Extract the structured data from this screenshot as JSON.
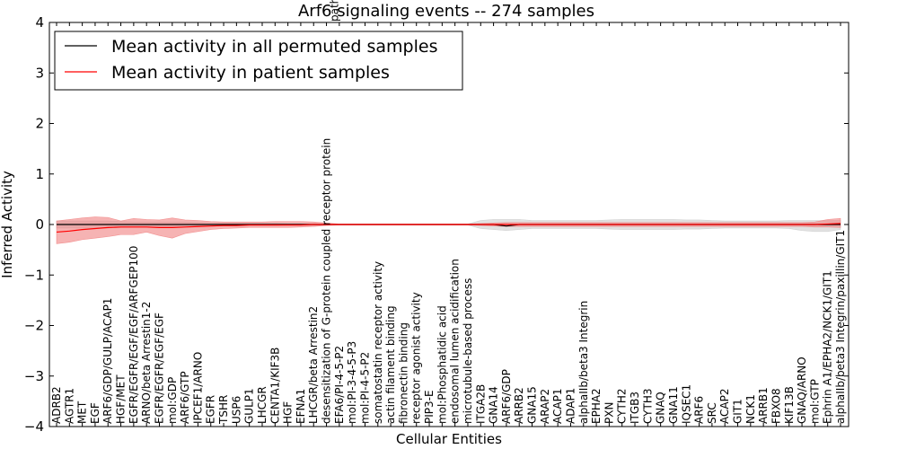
{
  "chart_data": {
    "type": "line",
    "title": "Arf6 signaling events -- 274 samples",
    "xlabel": "Cellular Entities",
    "ylabel": "Inferred Activity",
    "ylim": [
      -4,
      4
    ],
    "yticks": [
      "4",
      "3",
      "2",
      "1",
      "0",
      "−1",
      "−2",
      "−3",
      "−4"
    ],
    "grid": false,
    "legend_position": "top-left",
    "categories": [
      "ADRB2",
      "AGTR1",
      "MET",
      "EGF",
      "ARF6/GDP/GULP/ACAP1",
      "HGF/MET",
      "EGFR/EGFR/EGF/EGF/ARFGEP100",
      "ARNO/beta Arrestin1-2",
      "EGFR/EGFR/EGF/EGF",
      "mol:GDP",
      "ARF6/GTP",
      "IPCEF1/ARNO",
      "EGFR",
      "TSHR",
      "USP6",
      "GULP1",
      "LHCGR",
      "CENTA1/KIF3B",
      "HGF",
      "EFNA1",
      "LHCGR/beta Arrestin2",
      "desensitization of G-protein coupled receptor protein",
      "EFA6/PI-4-5-P2",
      "mol:PI-3-4-5-P3",
      "mol:PI-4-5-P2",
      "somatostatin receptor activity",
      "actin filament binding",
      "fibronectin binding",
      "receptor agonist activity",
      "PIP3-E",
      "mol:Phosphatidic acid",
      "endosomal lumen acidification",
      "microtubule-based process",
      "ITGA2B",
      "GNA14",
      "ARF6/GDP",
      "ARRB2",
      "GNA15",
      "ARAP2",
      "ACAP1",
      "ADAP1",
      "alphaIIb/beta3 Integrin",
      "EPHA2",
      "PXN",
      "CYTH2",
      "ITGB3",
      "CYTH3",
      "GNAQ",
      "GNA11",
      "IQSEC1",
      "ARF6",
      "SRC",
      "ACAP2",
      "GIT1",
      "NCK1",
      "ARRB1",
      "FBXO8",
      "KIF13B",
      "GNAQ/ARNO",
      "mol:GTP",
      "Ephrin A1/EPHA2/NCK1/GIT1",
      "alphaIIb/beta3 Integrin/paxillin/GIT1"
    ],
    "category_label_overflow": [
      "path"
    ],
    "series": [
      {
        "name": "Mean activity in all permuted samples",
        "color": "#000000",
        "values": [
          0,
          0,
          0,
          0,
          0,
          0,
          0,
          0,
          0,
          0,
          0,
          0,
          0,
          0,
          0,
          0,
          0,
          0,
          0,
          0,
          0,
          0,
          0,
          0,
          0,
          0,
          0,
          0,
          0,
          0,
          0,
          0,
          0,
          0,
          0,
          -0.03,
          0,
          0,
          0,
          0,
          0,
          0,
          0,
          0,
          0,
          0,
          0,
          0,
          0,
          0,
          0,
          0,
          0,
          0,
          0,
          0,
          0,
          0,
          0,
          0,
          0,
          0
        ],
        "band_color": "#c8c8c8",
        "band_lower": [
          -0.07,
          -0.07,
          -0.07,
          -0.07,
          -0.07,
          -0.06,
          -0.05,
          -0.05,
          -0.05,
          -0.05,
          -0.05,
          -0.04,
          -0.03,
          -0.03,
          -0.03,
          -0.03,
          -0.03,
          -0.03,
          -0.02,
          -0.02,
          -0.02,
          -0.01,
          -0.01,
          -0.01,
          -0.01,
          -0.01,
          -0.01,
          -0.01,
          -0.01,
          -0.01,
          -0.01,
          -0.01,
          -0.01,
          -0.08,
          -0.1,
          -0.12,
          -0.1,
          -0.08,
          -0.08,
          -0.08,
          -0.08,
          -0.08,
          -0.08,
          -0.09,
          -0.1,
          -0.1,
          -0.1,
          -0.1,
          -0.1,
          -0.09,
          -0.09,
          -0.08,
          -0.07,
          -0.07,
          -0.07,
          -0.07,
          -0.07,
          -0.08,
          -0.12,
          -0.14,
          -0.14,
          -0.1
        ],
        "band_upper": [
          0.07,
          0.07,
          0.07,
          0.07,
          0.07,
          0.06,
          0.05,
          0.05,
          0.05,
          0.05,
          0.05,
          0.04,
          0.03,
          0.03,
          0.03,
          0.03,
          0.03,
          0.03,
          0.02,
          0.02,
          0.02,
          0.01,
          0.01,
          0.01,
          0.01,
          0.01,
          0.01,
          0.01,
          0.01,
          0.01,
          0.01,
          0.01,
          0.01,
          0.08,
          0.1,
          0.1,
          0.1,
          0.08,
          0.08,
          0.08,
          0.08,
          0.08,
          0.08,
          0.09,
          0.1,
          0.1,
          0.1,
          0.1,
          0.1,
          0.09,
          0.09,
          0.08,
          0.07,
          0.07,
          0.07,
          0.07,
          0.07,
          0.08,
          0.08,
          0.08,
          0.08,
          0.08
        ]
      },
      {
        "name": "Mean activity in patient samples",
        "color": "#ff0000",
        "values": [
          -0.15,
          -0.13,
          -0.1,
          -0.08,
          -0.06,
          -0.05,
          -0.05,
          -0.05,
          -0.06,
          -0.06,
          -0.05,
          -0.04,
          -0.03,
          -0.02,
          -0.02,
          -0.01,
          -0.01,
          -0.01,
          -0.01,
          -0.01,
          0,
          0,
          0,
          0,
          0,
          0,
          0,
          0,
          0,
          0,
          0,
          0,
          0,
          0,
          0,
          0,
          0,
          0,
          0,
          0,
          0,
          0,
          0,
          0,
          0,
          0,
          0,
          0,
          0,
          0,
          0,
          0,
          0,
          0,
          0,
          0,
          0,
          0,
          0,
          0,
          0.01,
          0.02
        ],
        "band_color": "#f08080",
        "band_lower": [
          -0.38,
          -0.35,
          -0.3,
          -0.27,
          -0.24,
          -0.2,
          -0.2,
          -0.15,
          -0.22,
          -0.27,
          -0.18,
          -0.14,
          -0.1,
          -0.08,
          -0.07,
          -0.06,
          -0.06,
          -0.06,
          -0.06,
          -0.05,
          -0.04,
          -0.02,
          -0.01,
          -0.01,
          -0.01,
          -0.01,
          -0.01,
          -0.01,
          -0.01,
          -0.01,
          -0.01,
          -0.01,
          -0.01,
          -0.02,
          -0.03,
          -0.04,
          -0.04,
          -0.04,
          -0.04,
          -0.04,
          -0.04,
          -0.04,
          -0.04,
          -0.04,
          -0.04,
          -0.04,
          -0.04,
          -0.04,
          -0.04,
          -0.04,
          -0.04,
          -0.04,
          -0.04,
          -0.04,
          -0.04,
          -0.04,
          -0.04,
          -0.04,
          -0.04,
          -0.05,
          -0.05,
          -0.06
        ],
        "band_upper": [
          0.07,
          0.1,
          0.13,
          0.15,
          0.14,
          0.07,
          0.12,
          0.1,
          0.09,
          0.13,
          0.09,
          0.08,
          0.06,
          0.05,
          0.05,
          0.05,
          0.05,
          0.06,
          0.06,
          0.06,
          0.05,
          0.03,
          0.01,
          0.01,
          0.01,
          0.01,
          0.01,
          0.01,
          0.01,
          0.01,
          0.01,
          0.01,
          0.01,
          0.02,
          0.03,
          0.04,
          0.04,
          0.04,
          0.04,
          0.04,
          0.04,
          0.04,
          0.04,
          0.04,
          0.04,
          0.04,
          0.04,
          0.04,
          0.04,
          0.04,
          0.04,
          0.04,
          0.04,
          0.04,
          0.04,
          0.04,
          0.04,
          0.04,
          0.04,
          0.05,
          0.1,
          0.12
        ]
      }
    ]
  }
}
